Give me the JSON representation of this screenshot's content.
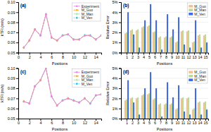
{
  "chart_data": [
    {
      "type": "line",
      "title": "(a)",
      "xlabel": "Positions",
      "ylabel": "kTFI (m/s)",
      "x": [
        1,
        2,
        3,
        4,
        5,
        6,
        7,
        8,
        9,
        10,
        11,
        12,
        13,
        14,
        15
      ],
      "xlim": [
        0,
        15
      ],
      "xticks": [
        0,
        2,
        4,
        6,
        8,
        10,
        12,
        14
      ],
      "ylim": [
        0.05,
        0.1
      ],
      "yticks": [
        0.05,
        0.06,
        0.07,
        0.08,
        0.09,
        {
          "value": 0.1,
          "label": "0.10"
        }
      ],
      "grid": false,
      "legend": "upper right",
      "series": [
        {
          "name": "Experiment",
          "color": "#EE82EE",
          "marker": "circle",
          "line_style": "solid",
          "values": [
            0.055,
            0.062,
            0.073,
            0.067,
            0.088,
            0.065,
            0.062,
            0.067,
            0.068,
            0.063,
            0.063,
            0.067,
            0.067,
            0.063,
            0.067
          ]
        },
        {
          "name": "M_Guo",
          "color": "#FFA500",
          "marker": "square",
          "line_style": "dashed",
          "values": [
            0.055,
            0.062,
            0.073,
            0.067,
            0.088,
            0.065,
            0.062,
            0.067,
            0.068,
            0.063,
            0.063,
            0.067,
            0.067,
            0.063,
            0.067
          ]
        },
        {
          "name": "M_Man",
          "color": "#90EE90",
          "marker": "triangle",
          "line_style": "dashdot",
          "values": [
            0.055,
            0.062,
            0.073,
            0.067,
            0.088,
            0.065,
            0.062,
            0.067,
            0.068,
            0.063,
            0.063,
            0.067,
            0.067,
            0.063,
            0.067
          ]
        },
        {
          "name": "M_Ven",
          "color": "#00BFFF",
          "marker": "diamond",
          "line_style": "dotted",
          "values": [
            0.055,
            0.062,
            0.073,
            0.067,
            0.088,
            0.065,
            0.062,
            0.067,
            0.068,
            0.063,
            0.063,
            0.067,
            0.067,
            0.063,
            0.067
          ]
        }
      ]
    },
    {
      "type": "bar",
      "title": "(b)",
      "xlabel": "Positions",
      "ylabel": "Relative Error",
      "x": [
        1,
        2,
        3,
        4,
        5,
        6,
        7,
        8,
        9,
        10,
        11,
        12,
        13,
        14,
        15
      ],
      "xlim": [
        0,
        15.5
      ],
      "xticks": [
        1,
        2,
        3,
        4,
        5,
        6,
        7,
        8,
        9,
        10,
        11,
        12,
        13,
        14,
        15
      ],
      "ylim": [
        0,
        5
      ],
      "yticks": [
        {
          "value": 0,
          "label": "0%"
        },
        {
          "value": 1,
          "label": "1%"
        },
        {
          "value": 2,
          "label": "2%"
        },
        {
          "value": 3,
          "label": "3%"
        },
        {
          "value": 4,
          "label": "4%"
        },
        {
          "value": 5,
          "label": "5%"
        }
      ],
      "grid": true,
      "legend": "upper right",
      "series": [
        {
          "name": "M_Guo",
          "color": "#F4C28A",
          "values": [
            1.9,
            2.2,
            2.2,
            2.5,
            2.6,
            2.0,
            1.5,
            1.5,
            1.5,
            1.0,
            2.1,
            2.1,
            1.0,
            1.7,
            1.7
          ]
        },
        {
          "name": "M_Man",
          "color": "#B8D9A0",
          "values": [
            2.0,
            2.3,
            2.3,
            2.6,
            2.7,
            2.1,
            1.6,
            1.6,
            1.6,
            1.1,
            2.2,
            2.2,
            1.1,
            1.8,
            1.8
          ]
        },
        {
          "name": "M_Ven",
          "color": "#4169E1",
          "values": [
            4.0,
            1.8,
            0.5,
            3.2,
            4.8,
            3.2,
            0.3,
            3.8,
            2.3,
            3.5,
            0.8,
            0.5,
            3.2,
            0.5,
            1.0
          ]
        }
      ]
    },
    {
      "type": "line",
      "title": "(c)",
      "xlabel": "Positions",
      "ylabel": "kTFI (m/s)",
      "x": [
        1,
        2,
        3,
        4,
        5,
        6,
        7,
        8,
        9,
        10,
        11,
        12,
        13,
        14,
        15
      ],
      "xlim": [
        0,
        15
      ],
      "xticks": [
        0,
        2,
        4,
        6,
        8,
        10,
        12,
        14
      ],
      "ylim": [
        0.05,
        0.1
      ],
      "yticks": [
        0.05,
        0.06,
        0.07,
        0.08,
        0.09,
        {
          "value": 0.1,
          "label": "0.10"
        }
      ],
      "grid": false,
      "legend": "upper right",
      "series": [
        {
          "name": "Experiment",
          "color": "#EE82EE",
          "marker": "circle",
          "line_style": "solid",
          "values": [
            0.067,
            0.065,
            0.082,
            0.088,
            0.1,
            0.072,
            0.063,
            0.068,
            0.07,
            0.068,
            0.066,
            0.07,
            0.065,
            0.073,
            0.074
          ]
        },
        {
          "name": "M_Guo",
          "color": "#FFA500",
          "marker": "square",
          "line_style": "dashed",
          "values": [
            0.067,
            0.065,
            0.082,
            0.088,
            0.1,
            0.072,
            0.063,
            0.068,
            0.07,
            0.068,
            0.066,
            0.07,
            0.065,
            0.073,
            0.074
          ]
        },
        {
          "name": "M_Man",
          "color": "#90EE90",
          "marker": "triangle",
          "line_style": "dashdot",
          "values": [
            0.067,
            0.065,
            0.082,
            0.088,
            0.1,
            0.072,
            0.063,
            0.068,
            0.07,
            0.068,
            0.066,
            0.07,
            0.065,
            0.073,
            0.074
          ]
        },
        {
          "name": "M_Ven",
          "color": "#00BFFF",
          "marker": "diamond",
          "line_style": "dotted",
          "values": [
            0.067,
            0.065,
            0.082,
            0.088,
            0.1,
            0.072,
            0.063,
            0.068,
            0.07,
            0.068,
            0.066,
            0.07,
            0.065,
            0.073,
            0.074
          ]
        }
      ]
    },
    {
      "type": "bar",
      "title": "(d)",
      "xlabel": "Positions",
      "ylabel": "Relative Error",
      "x": [
        1,
        2,
        3,
        4,
        5,
        6,
        7,
        8,
        9,
        10,
        11,
        12,
        13,
        14,
        15
      ],
      "xlim": [
        0,
        15.5
      ],
      "xticks": [
        1,
        2,
        3,
        4,
        5,
        6,
        7,
        8,
        9,
        10,
        11,
        12,
        13,
        14,
        15
      ],
      "ylim": [
        0,
        5
      ],
      "yticks": [
        {
          "value": 0,
          "label": "0%"
        },
        {
          "value": 1,
          "label": "1%"
        },
        {
          "value": 2,
          "label": "2%"
        },
        {
          "value": 3,
          "label": "3%"
        },
        {
          "value": 4,
          "label": "4%"
        },
        {
          "value": 5,
          "label": "5%"
        }
      ],
      "grid": true,
      "legend": "upper right",
      "series": [
        {
          "name": "M_Guo",
          "color": "#F4C28A",
          "values": [
            1.8,
            2.0,
            2.0,
            2.3,
            2.4,
            1.9,
            1.4,
            1.4,
            1.4,
            0.9,
            2.0,
            2.0,
            0.9,
            1.6,
            1.6
          ]
        },
        {
          "name": "M_Man",
          "color": "#B8D9A0",
          "values": [
            1.9,
            2.1,
            2.1,
            2.4,
            2.5,
            2.0,
            1.5,
            1.5,
            1.5,
            1.0,
            2.1,
            2.1,
            1.0,
            1.7,
            1.7
          ]
        },
        {
          "name": "M_Ven",
          "color": "#4169E1",
          "values": [
            3.8,
            1.6,
            0.4,
            3.0,
            4.6,
            3.0,
            0.2,
            3.6,
            2.1,
            3.3,
            0.7,
            0.4,
            3.0,
            0.4,
            0.9
          ]
        }
      ]
    }
  ]
}
